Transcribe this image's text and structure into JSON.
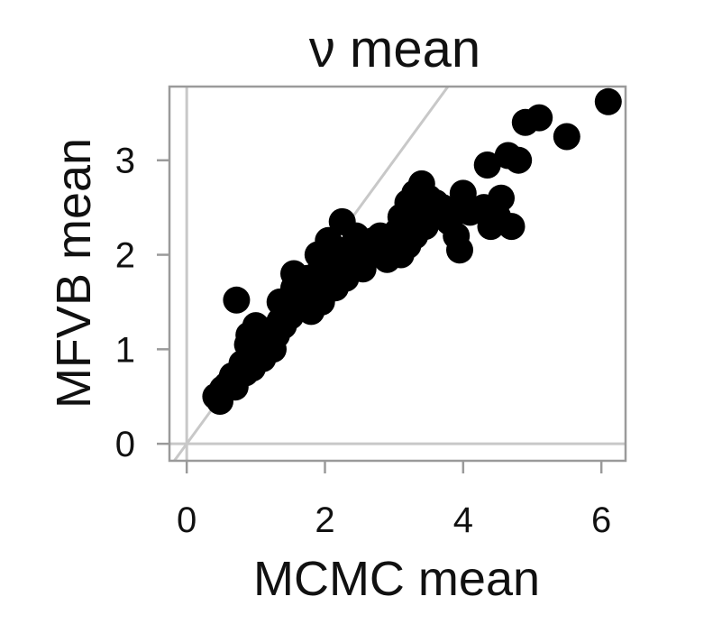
{
  "chart_data": {
    "type": "scatter",
    "title": "ν mean",
    "xlabel": "MCMC mean",
    "ylabel": "MFVB mean",
    "xlim": [
      -0.25,
      6.35
    ],
    "ylim": [
      -0.18,
      3.78
    ],
    "xticks": [
      0,
      2,
      4,
      6
    ],
    "yticks": [
      0,
      1,
      2,
      3
    ],
    "grid": false,
    "reference_lines": {
      "identity": true,
      "x_zero": true,
      "y_zero": true
    },
    "colors": {
      "points": "#000000",
      "reference": "#c8c8c8",
      "frame": "#9a9a9a"
    },
    "points": [
      [
        0.42,
        0.5
      ],
      [
        0.48,
        0.45
      ],
      [
        0.52,
        0.58
      ],
      [
        0.58,
        0.62
      ],
      [
        0.66,
        0.72
      ],
      [
        0.7,
        0.6
      ],
      [
        0.72,
        1.52
      ],
      [
        0.8,
        0.85
      ],
      [
        0.85,
        0.75
      ],
      [
        0.88,
        1.05
      ],
      [
        0.9,
        1.15
      ],
      [
        0.95,
        0.8
      ],
      [
        1.0,
        0.95
      ],
      [
        1.0,
        1.25
      ],
      [
        1.05,
        1.1
      ],
      [
        1.1,
        0.9
      ],
      [
        1.15,
        1.05
      ],
      [
        1.2,
        1.2
      ],
      [
        1.25,
        1.0
      ],
      [
        1.3,
        1.15
      ],
      [
        1.35,
        1.3
      ],
      [
        1.35,
        1.5
      ],
      [
        1.4,
        1.25
      ],
      [
        1.45,
        1.4
      ],
      [
        1.5,
        1.35
      ],
      [
        1.55,
        1.65
      ],
      [
        1.55,
        1.8
      ],
      [
        1.6,
        1.5
      ],
      [
        1.65,
        1.45
      ],
      [
        1.7,
        1.6
      ],
      [
        1.75,
        1.55
      ],
      [
        1.75,
        1.75
      ],
      [
        1.8,
        1.4
      ],
      [
        1.85,
        1.65
      ],
      [
        1.9,
        2.0
      ],
      [
        1.9,
        1.8
      ],
      [
        1.95,
        1.5
      ],
      [
        2.0,
        1.7
      ],
      [
        2.05,
        1.95
      ],
      [
        2.05,
        2.15
      ],
      [
        2.1,
        1.85
      ],
      [
        2.15,
        1.65
      ],
      [
        2.2,
        2.05
      ],
      [
        2.25,
        2.35
      ],
      [
        2.25,
        1.9
      ],
      [
        2.3,
        1.75
      ],
      [
        2.35,
        2.0
      ],
      [
        2.4,
        1.95
      ],
      [
        2.45,
        2.2
      ],
      [
        2.5,
        2.0
      ],
      [
        2.55,
        1.85
      ],
      [
        2.6,
        2.1
      ],
      [
        2.65,
        2.0
      ],
      [
        2.7,
        2.15
      ],
      [
        2.75,
        2.05
      ],
      [
        2.8,
        2.2
      ],
      [
        2.85,
        2.1
      ],
      [
        2.9,
        1.95
      ],
      [
        2.95,
        2.05
      ],
      [
        3.0,
        2.15
      ],
      [
        3.05,
        2.25
      ],
      [
        3.1,
        2.0
      ],
      [
        3.1,
        2.4
      ],
      [
        3.15,
        2.3
      ],
      [
        3.2,
        2.1
      ],
      [
        3.2,
        2.55
      ],
      [
        3.25,
        2.45
      ],
      [
        3.3,
        2.65
      ],
      [
        3.3,
        2.2
      ],
      [
        3.35,
        2.35
      ],
      [
        3.4,
        2.5
      ],
      [
        3.4,
        2.75
      ],
      [
        3.45,
        2.3
      ],
      [
        3.5,
        2.6
      ],
      [
        3.55,
        2.4
      ],
      [
        3.6,
        2.55
      ],
      [
        3.7,
        2.5
      ],
      [
        3.8,
        2.35
      ],
      [
        3.9,
        2.2
      ],
      [
        3.95,
        2.5
      ],
      [
        3.95,
        2.05
      ],
      [
        4.0,
        2.65
      ],
      [
        4.1,
        2.45
      ],
      [
        4.3,
        2.5
      ],
      [
        4.35,
        2.95
      ],
      [
        4.4,
        2.3
      ],
      [
        4.5,
        2.4
      ],
      [
        4.55,
        2.6
      ],
      [
        4.65,
        3.05
      ],
      [
        4.7,
        2.3
      ],
      [
        4.8,
        3.0
      ],
      [
        4.9,
        3.4
      ],
      [
        5.1,
        3.45
      ],
      [
        5.5,
        3.25
      ],
      [
        6.1,
        3.62
      ]
    ]
  }
}
